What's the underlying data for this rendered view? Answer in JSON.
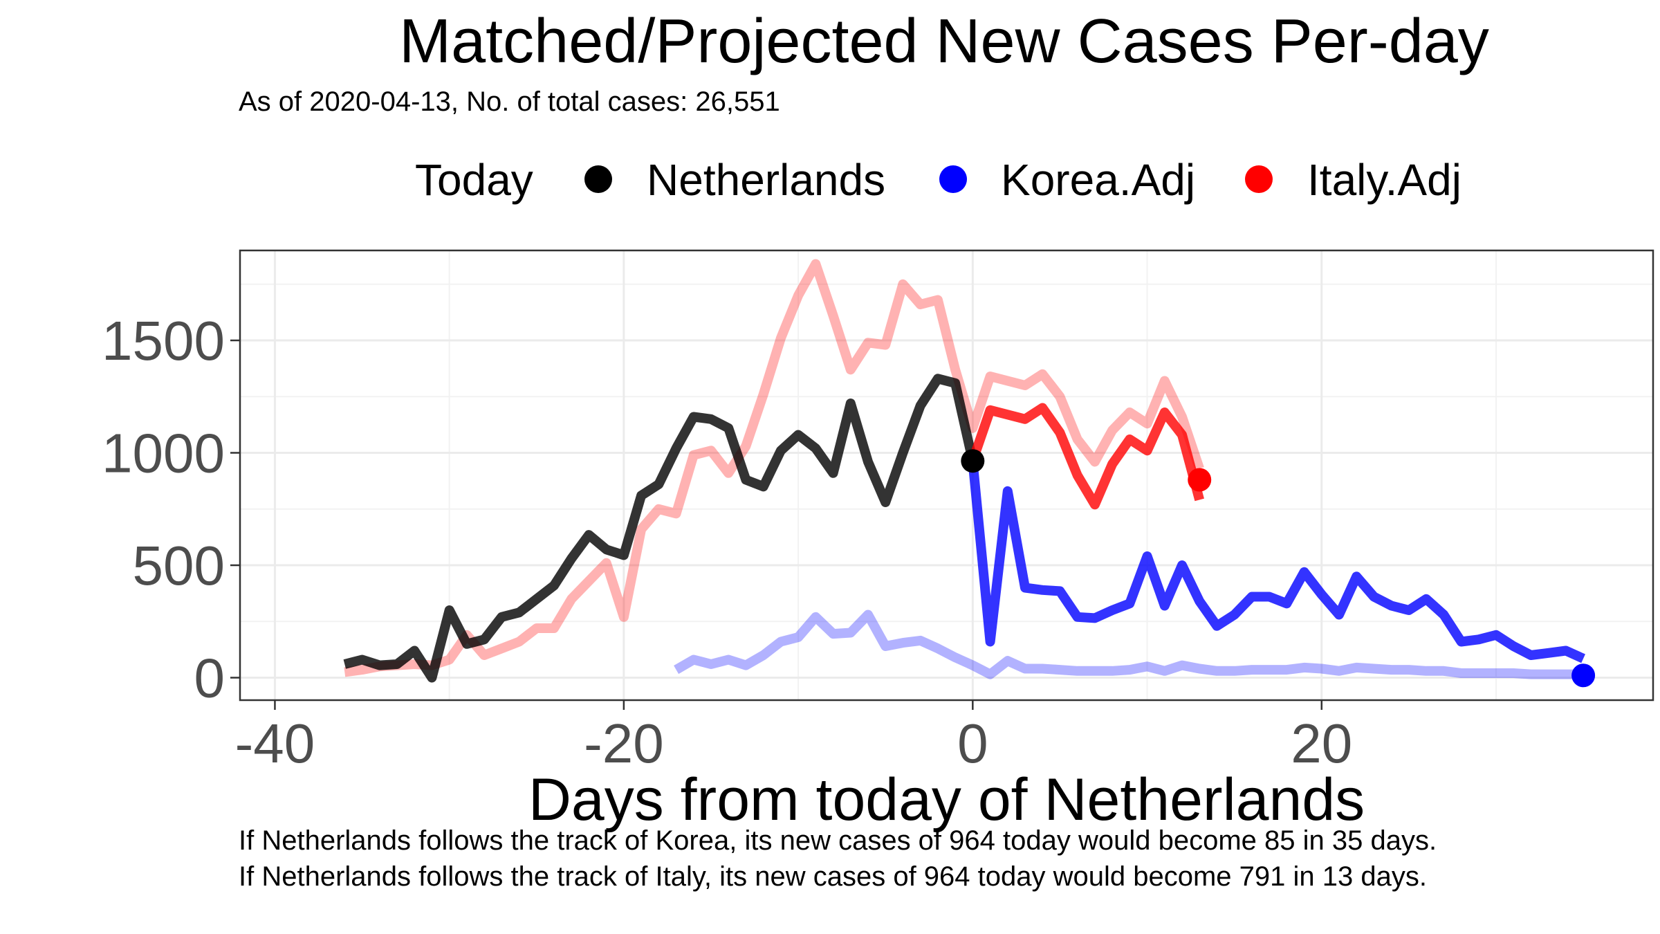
{
  "chart_data": {
    "type": "line",
    "title": "Matched/Projected New Cases Per-day",
    "subtitle": "As of 2020-04-13, No. of total cases: 26,551",
    "xlabel": "Days from today of Netherlands",
    "ylabel": "",
    "xlim": [
      -42,
      39
    ],
    "ylim": [
      -100,
      1900
    ],
    "xticks": [
      -40,
      -20,
      0,
      20
    ],
    "yticks": [
      0,
      500,
      1000,
      1500
    ],
    "grid": true,
    "legend": {
      "title": "Today",
      "placement": "top",
      "entries": [
        {
          "label": "Netherlands",
          "color": "#000000"
        },
        {
          "label": "Korea.Adj",
          "color": "#0000ff"
        },
        {
          "label": "Italy.Adj",
          "color": "#ff0000"
        }
      ]
    },
    "series": [
      {
        "name": "Netherlands",
        "role": "observed",
        "color": "#000000",
        "opacity": 0.8,
        "x": [
          -36,
          -35,
          -34,
          -33,
          -32,
          -31,
          -30,
          -29,
          -28,
          -27,
          -26,
          -25,
          -24,
          -23,
          -22,
          -21,
          -20,
          -19,
          -18,
          -17,
          -16,
          -15,
          -14,
          -13,
          -12,
          -11,
          -10,
          -9,
          -8,
          -7,
          -6,
          -5,
          -4,
          -3,
          -2,
          -1,
          0
        ],
        "values": [
          60,
          80,
          55,
          60,
          120,
          0,
          300,
          150,
          170,
          270,
          290,
          350,
          410,
          530,
          635,
          570,
          545,
          810,
          860,
          1020,
          1160,
          1150,
          1110,
          880,
          850,
          1010,
          1080,
          1020,
          910,
          1220,
          960,
          780,
          1000,
          1210,
          1330,
          1310,
          964
        ]
      },
      {
        "name": "Italy.Adj",
        "role": "matched",
        "color": "#ff0000",
        "opacity": 0.3,
        "x": [
          -36,
          -35,
          -34,
          -33,
          -32,
          -31,
          -30,
          -29,
          -28,
          -27,
          -26,
          -25,
          -24,
          -23,
          -22,
          -21,
          -20,
          -19,
          -18,
          -17,
          -16,
          -15,
          -14,
          -13,
          -12,
          -11,
          -10,
          -9,
          -8,
          -7,
          -6,
          -5,
          -4,
          -3,
          -2,
          -1,
          0,
          1,
          2,
          3,
          4,
          5,
          6,
          7,
          8,
          9,
          10,
          11,
          12,
          13
        ],
        "values": [
          25,
          35,
          50,
          55,
          60,
          55,
          80,
          190,
          100,
          130,
          160,
          220,
          220,
          350,
          430,
          510,
          270,
          660,
          750,
          730,
          990,
          1010,
          910,
          1030,
          1260,
          1510,
          1700,
          1840,
          1610,
          1370,
          1490,
          1480,
          1750,
          1660,
          1680,
          1370,
          1110,
          1340,
          1320,
          1300,
          1350,
          1250,
          1060,
          960,
          1100,
          1180,
          1130,
          1320,
          1160,
          930
        ]
      },
      {
        "name": "Italy.Adj",
        "role": "projected",
        "color": "#ff0000",
        "opacity": 0.8,
        "x": [
          0,
          1,
          2,
          3,
          4,
          5,
          6,
          7,
          8,
          9,
          10,
          11,
          12,
          13
        ],
        "values": [
          964,
          1190,
          1170,
          1150,
          1200,
          1090,
          900,
          770,
          950,
          1060,
          1010,
          1180,
          1080,
          791
        ]
      },
      {
        "name": "Korea.Adj",
        "role": "matched",
        "color": "#0000ff",
        "opacity": 0.3,
        "x": [
          -17,
          -16,
          -15,
          -14,
          -13,
          -12,
          -11,
          -10,
          -9,
          -8,
          -7,
          -6,
          -5,
          -4,
          -3,
          -2,
          -1,
          0,
          1,
          2,
          3,
          4,
          5,
          6,
          7,
          8,
          9,
          10,
          11,
          12,
          13,
          14,
          15,
          16,
          17,
          18,
          19,
          20,
          21,
          22,
          23,
          24,
          25,
          26,
          27,
          28,
          29,
          30,
          31,
          32,
          33,
          34,
          35
        ],
        "values": [
          35,
          80,
          60,
          80,
          55,
          100,
          160,
          180,
          270,
          195,
          200,
          280,
          140,
          155,
          165,
          130,
          90,
          55,
          15,
          75,
          40,
          40,
          35,
          30,
          30,
          30,
          35,
          50,
          30,
          55,
          40,
          30,
          30,
          35,
          35,
          35,
          45,
          40,
          30,
          45,
          40,
          35,
          35,
          30,
          30,
          20,
          20,
          20,
          20,
          15,
          15,
          15,
          15
        ]
      },
      {
        "name": "Korea.Adj",
        "role": "projected",
        "color": "#0000ff",
        "opacity": 0.8,
        "x": [
          0,
          1,
          2,
          3,
          4,
          5,
          6,
          7,
          8,
          9,
          10,
          11,
          12,
          13,
          14,
          15,
          16,
          17,
          18,
          19,
          20,
          21,
          22,
          23,
          24,
          25,
          26,
          27,
          28,
          29,
          30,
          31,
          32,
          33,
          34,
          35
        ],
        "values": [
          964,
          160,
          830,
          400,
          390,
          385,
          270,
          265,
          300,
          330,
          540,
          320,
          500,
          340,
          230,
          280,
          360,
          360,
          330,
          470,
          370,
          280,
          450,
          360,
          320,
          300,
          350,
          280,
          160,
          170,
          190,
          140,
          100,
          110,
          120,
          85
        ]
      }
    ],
    "today_points": [
      {
        "series": "Netherlands",
        "x": 0,
        "y": 964,
        "color": "#000000"
      },
      {
        "series": "Italy.Adj",
        "x": 13,
        "y": 880,
        "color": "#ff0000"
      },
      {
        "series": "Korea.Adj",
        "x": 35,
        "y": 10,
        "color": "#0000ff"
      }
    ],
    "annotations": [
      "If Netherlands follows the track of Korea, its new cases of 964 today would become 85 in 35 days.",
      "If Netherlands follows the track of Italy, its new cases of 964 today would become 791 in 13 days."
    ]
  }
}
